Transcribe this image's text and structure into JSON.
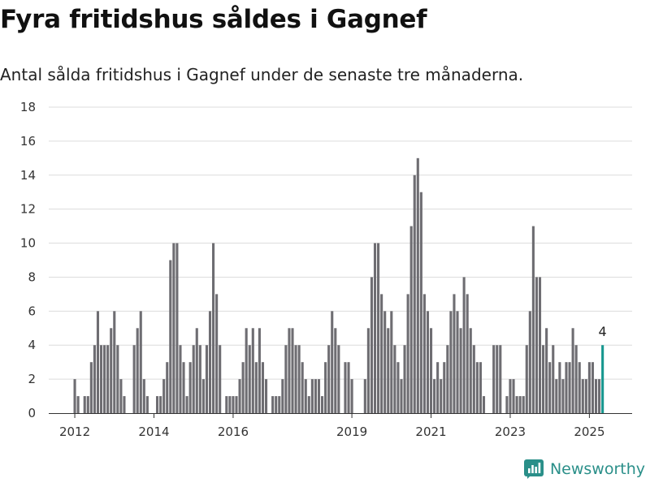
{
  "title": "Fyra fritidshus såldes i Gagnef",
  "subtitle": "Antal sålda fritidshus i Gagnef under de senaste tre månaderna.",
  "brand": {
    "name": "Newsworthy",
    "logo_icon": "newsworthy-logo-icon"
  },
  "colors": {
    "bar": "#6e6d72",
    "highlight": "#17978f",
    "grid": "#dcdcdc",
    "brand": "#2a8f89"
  },
  "chart_data": {
    "type": "bar",
    "title": "",
    "xlabel": "",
    "ylabel": "",
    "ylim": [
      0,
      18
    ],
    "y_ticks": [
      0,
      2,
      4,
      6,
      8,
      10,
      12,
      14,
      16,
      18
    ],
    "x_tick_labels": [
      "2012",
      "2014",
      "2016",
      "2019",
      "2021",
      "2023",
      "2025"
    ],
    "x_tick_periods": [
      "2012-01",
      "2014-01",
      "2016-01",
      "2019-01",
      "2021-01",
      "2023-01",
      "2025-01"
    ],
    "grid": true,
    "highlight_label": "4",
    "periods": [
      "2012-01",
      "2012-02",
      "2012-03",
      "2012-04",
      "2012-05",
      "2012-06",
      "2012-07",
      "2012-08",
      "2012-09",
      "2012-10",
      "2012-11",
      "2012-12",
      "2013-01",
      "2013-02",
      "2013-03",
      "2013-04",
      "2013-05",
      "2013-06",
      "2013-07",
      "2013-08",
      "2013-09",
      "2013-10",
      "2013-11",
      "2013-12",
      "2014-01",
      "2014-02",
      "2014-03",
      "2014-04",
      "2014-05",
      "2014-06",
      "2014-07",
      "2014-08",
      "2014-09",
      "2014-10",
      "2014-11",
      "2014-12",
      "2015-01",
      "2015-02",
      "2015-03",
      "2015-04",
      "2015-05",
      "2015-06",
      "2015-07",
      "2015-08",
      "2015-09",
      "2015-10",
      "2015-11",
      "2015-12",
      "2016-01",
      "2016-02",
      "2016-03",
      "2016-04",
      "2016-05",
      "2016-06",
      "2016-07",
      "2016-08",
      "2016-09",
      "2016-10",
      "2016-11",
      "2016-12",
      "2017-01",
      "2017-02",
      "2017-03",
      "2017-04",
      "2017-05",
      "2017-06",
      "2017-07",
      "2017-08",
      "2017-09",
      "2017-10",
      "2017-11",
      "2017-12",
      "2018-01",
      "2018-02",
      "2018-03",
      "2018-04",
      "2018-05",
      "2018-06",
      "2018-07",
      "2018-08",
      "2018-09",
      "2018-10",
      "2018-11",
      "2018-12",
      "2019-01",
      "2019-02",
      "2019-03",
      "2019-04",
      "2019-05",
      "2019-06",
      "2019-07",
      "2019-08",
      "2019-09",
      "2019-10",
      "2019-11",
      "2019-12",
      "2020-01",
      "2020-02",
      "2020-03",
      "2020-04",
      "2020-05",
      "2020-06",
      "2020-07",
      "2020-08",
      "2020-09",
      "2020-10",
      "2020-11",
      "2020-12",
      "2021-01",
      "2021-02",
      "2021-03",
      "2021-04",
      "2021-05",
      "2021-06",
      "2021-07",
      "2021-08",
      "2021-09",
      "2021-10",
      "2021-11",
      "2021-12",
      "2022-01",
      "2022-02",
      "2022-03",
      "2022-04",
      "2022-05",
      "2022-06",
      "2022-07",
      "2022-08",
      "2022-09",
      "2022-10",
      "2022-11",
      "2022-12",
      "2023-01",
      "2023-02",
      "2023-03",
      "2023-04",
      "2023-05",
      "2023-06",
      "2023-07",
      "2023-08",
      "2023-09",
      "2023-10",
      "2023-11",
      "2023-12",
      "2024-01",
      "2024-02",
      "2024-03",
      "2024-04",
      "2024-05",
      "2024-06",
      "2024-07",
      "2024-08",
      "2024-09",
      "2024-10",
      "2024-11",
      "2024-12",
      "2025-01",
      "2025-02",
      "2025-03",
      "2025-04",
      "2025-05"
    ],
    "values": [
      2,
      1,
      0,
      1,
      1,
      3,
      4,
      6,
      4,
      4,
      4,
      5,
      6,
      4,
      2,
      1,
      0,
      0,
      4,
      5,
      6,
      2,
      1,
      0,
      0,
      1,
      1,
      2,
      3,
      9,
      10,
      10,
      4,
      3,
      1,
      3,
      4,
      5,
      4,
      2,
      4,
      6,
      10,
      7,
      4,
      0,
      1,
      1,
      1,
      1,
      2,
      3,
      5,
      4,
      5,
      3,
      5,
      3,
      2,
      0,
      1,
      1,
      1,
      2,
      4,
      5,
      5,
      4,
      4,
      3,
      2,
      1,
      2,
      2,
      2,
      1,
      3,
      4,
      6,
      5,
      4,
      0,
      3,
      3,
      2,
      0,
      0,
      0,
      2,
      5,
      8,
      10,
      10,
      7,
      6,
      5,
      6,
      4,
      3,
      2,
      4,
      7,
      11,
      14,
      15,
      13,
      7,
      6,
      5,
      2,
      3,
      2,
      3,
      4,
      6,
      7,
      6,
      5,
      8,
      7,
      5,
      4,
      3,
      3,
      1,
      0,
      0,
      4,
      4,
      4,
      0,
      1,
      2,
      2,
      1,
      1,
      1,
      4,
      6,
      11,
      8,
      8,
      4,
      5,
      3,
      4,
      2,
      3,
      2,
      3,
      3,
      5,
      4,
      3,
      2,
      2,
      3,
      3,
      2,
      2,
      4
    ]
  }
}
